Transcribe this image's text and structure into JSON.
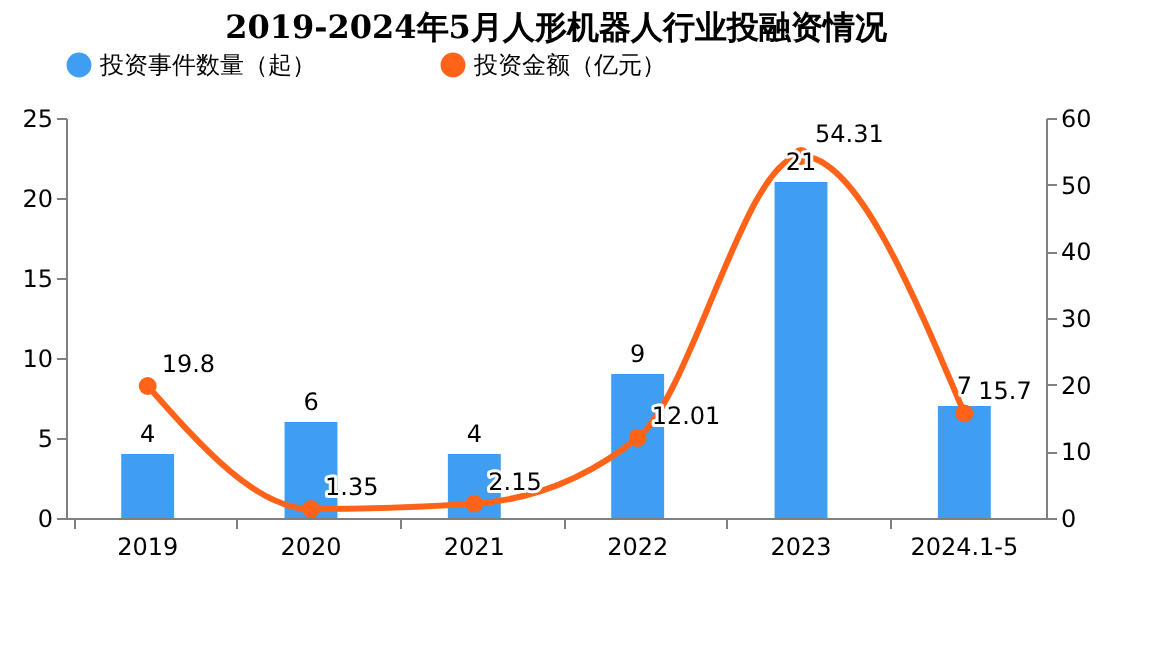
{
  "chart_data": {
    "type": "bar",
    "title": "2019-2024年5月人形机器人行业投融资情况",
    "categories": [
      "2019",
      "2020",
      "2021",
      "2022",
      "2023",
      "2024.1-5"
    ],
    "series": [
      {
        "name": "投资事件数量（起）",
        "color": "#409ef2",
        "values": [
          4,
          6,
          4,
          9,
          21,
          7
        ]
      },
      {
        "name": "投资金额（亿元）",
        "type": "line",
        "axis": "y2",
        "color": "#ff6319",
        "values": [
          19.8,
          1.35,
          2.15,
          12.01,
          54.31,
          15.7
        ]
      }
    ],
    "ylim": [
      0,
      25
    ],
    "yticks": [
      0,
      5,
      10,
      15,
      20,
      25
    ],
    "y2lim": [
      0,
      60
    ],
    "y2ticks": [
      0,
      10,
      20,
      30,
      40,
      50,
      60
    ],
    "data_labels": true,
    "legend": "top",
    "marker": "circle",
    "grid": false
  }
}
